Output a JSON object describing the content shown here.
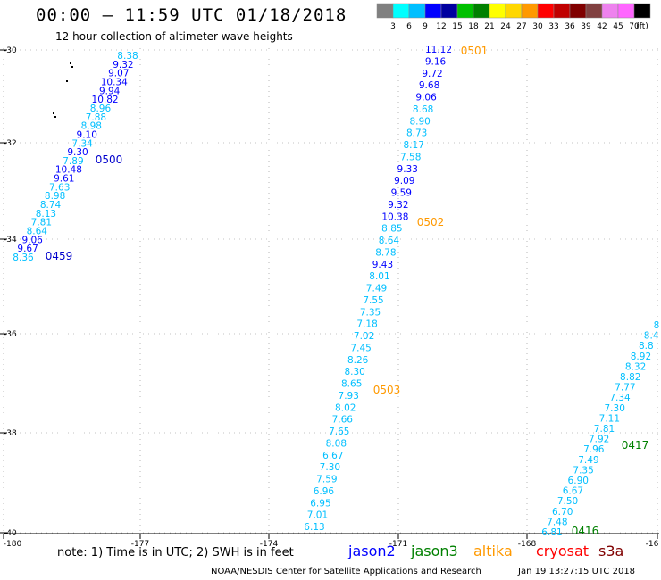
{
  "title": "00:00 – 11:59 UTC 01/18/2018",
  "subtitle": "12 hour collection of altimeter wave heights",
  "legend": {
    "colors": [
      "#808080",
      "#00ffff",
      "#00bfff",
      "#0000ff",
      "#0000a0",
      "#00c000",
      "#008000",
      "#ffff00",
      "#ffd700",
      "#ff9900",
      "#ff0000",
      "#c00000",
      "#800000",
      "#804040",
      "#ee82ee",
      "#ff66ff",
      "#000000"
    ],
    "labels": [
      "3",
      "6",
      "9",
      "12",
      "15",
      "18",
      "21",
      "24",
      "27",
      "30",
      "33",
      "36",
      "39",
      "42",
      "45",
      "70",
      "(ft)"
    ]
  },
  "axes": {
    "lat_labels": [
      "-30",
      "-32",
      "-34",
      "-36",
      "-38",
      "-40"
    ],
    "lon_labels": [
      "-180",
      "-177",
      "-174",
      "-171",
      "-168",
      "-16"
    ]
  },
  "tracks": {
    "track_a": {
      "values": [
        "8.38",
        "9.32",
        "9.07",
        "10.34",
        "9.94",
        "10.82",
        "8.96",
        "7.88",
        "8.98",
        "9.10",
        "7.34",
        "9.30",
        "7.89",
        "10.48",
        "9.61",
        "7.63",
        "8.98",
        "8.74",
        "8.13",
        "7.81",
        "8.64",
        "9.06",
        "9.67",
        "8.36"
      ],
      "times": [
        "0500",
        "0459"
      ]
    },
    "track_b": {
      "values": [
        "11.12",
        "9.16",
        "9.72",
        "9.68",
        "9.06",
        "8.68",
        "8.90",
        "8.73",
        "8.17",
        "7.58",
        "9.33",
        "9.09",
        "9.59",
        "9.32",
        "10.38",
        "8.85",
        "8.64",
        "8.78",
        "9.43",
        "8.01",
        "7.49",
        "7.55",
        "7.35",
        "7.18",
        "7.02",
        "7.45",
        "8.26",
        "8.30",
        "8.65",
        "7.93",
        "8.02",
        "7.66",
        "7.65",
        "8.08",
        "6.67",
        "7.30",
        "7.59",
        "6.96",
        "6.95",
        "7.01",
        "6.13"
      ],
      "times": [
        "0501",
        "0502",
        "0503"
      ]
    },
    "track_c": {
      "values": [
        "8",
        "8.4",
        "8.8",
        "8.92",
        "8.32",
        "8.82",
        "7.77",
        "7.34",
        "7.30",
        "7.11",
        "7.81",
        "7.92",
        "7.96",
        "7.49",
        "7.35",
        "6.90",
        "6.67",
        "7.50",
        "6.70",
        "7.48",
        "6.81"
      ],
      "times": [
        "0417",
        "0416"
      ]
    }
  },
  "footer": {
    "note": "note: 1) Time is in UTC; 2) SWH is in feet",
    "satellites": [
      "jason2",
      "jason3",
      "altika",
      "cryosat",
      "s3a"
    ],
    "satellite_colors": [
      "#0000ff",
      "#008000",
      "#ff9900",
      "#ff0000",
      "#800000"
    ],
    "credit": "NOAA/NESDIS Center for Satellite Applications and Research",
    "timestamp": "Jan 19 13:27:15 UTC 2018"
  }
}
